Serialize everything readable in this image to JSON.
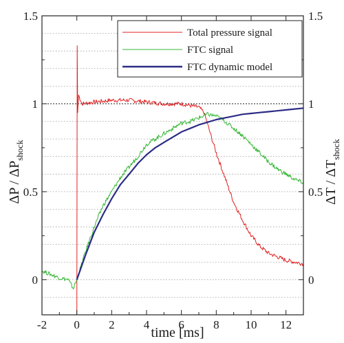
{
  "chart_data": {
    "type": "line",
    "title": "",
    "xlabel": "time [ms]",
    "ylabel_left": {
      "main": "ΔP / ΔP",
      "sub": "shock"
    },
    "ylabel_right": {
      "main": "ΔT / ΔT",
      "sub": "shock"
    },
    "xlim": [
      -2,
      13
    ],
    "ylim": [
      -0.2,
      1.5
    ],
    "x_ticks": [
      "-2",
      "0",
      "2",
      "4",
      "6",
      "8",
      "10",
      "12"
    ],
    "y_ticks_left": [
      "0",
      "0.5",
      "1",
      "1.5"
    ],
    "y_ticks_right": [
      "0",
      "0.5",
      "1",
      "1.5"
    ],
    "grid": "horizontal dotted",
    "reference_line": 1,
    "legend_position": "top-right",
    "series": [
      {
        "name": "Total pressure signal",
        "color": "#e02020",
        "x": [
          0,
          0.02,
          0.05,
          0.1,
          0.3,
          1,
          2,
          3,
          4,
          5,
          6,
          6.5,
          7,
          7.3,
          7.6,
          8,
          8.5,
          9,
          9.5,
          10,
          10.5,
          11,
          11.5,
          12,
          12.5,
          13
        ],
        "y": [
          -0.2,
          1.33,
          0.95,
          1.05,
          1.0,
          1.01,
          1.02,
          1.02,
          1.01,
          1.0,
          1.0,
          0.99,
          0.98,
          0.95,
          0.85,
          0.72,
          0.58,
          0.44,
          0.34,
          0.25,
          0.19,
          0.15,
          0.13,
          0.11,
          0.1,
          0.09
        ]
      },
      {
        "name": "FTC signal",
        "color": "#33b533",
        "x": [
          -2,
          -1.5,
          -1,
          -0.5,
          -0.2,
          0,
          0.5,
          1,
          1.5,
          2,
          2.5,
          3,
          3.5,
          4,
          4.5,
          5,
          5.5,
          6,
          6.5,
          7,
          7.5,
          8,
          8.5,
          9,
          9.5,
          10,
          10.5,
          11,
          11.5,
          12,
          12.5,
          13
        ],
        "y": [
          0.05,
          0.03,
          0.01,
          0.0,
          -0.05,
          0.0,
          0.16,
          0.3,
          0.42,
          0.5,
          0.58,
          0.64,
          0.7,
          0.77,
          0.8,
          0.83,
          0.86,
          0.89,
          0.9,
          0.92,
          0.94,
          0.93,
          0.9,
          0.86,
          0.82,
          0.77,
          0.72,
          0.67,
          0.63,
          0.6,
          0.57,
          0.55
        ]
      },
      {
        "name": "FTC dynamic model",
        "color": "#2b2b85",
        "x": [
          0,
          0.5,
          1,
          1.5,
          2,
          2.5,
          3,
          3.5,
          4,
          4.5,
          5,
          5.5,
          6,
          6.5,
          7,
          7.5,
          8,
          8.5,
          9,
          9.5,
          10,
          10.5,
          11,
          11.5,
          12,
          12.5,
          13
        ],
        "y": [
          0.0,
          0.14,
          0.27,
          0.37,
          0.46,
          0.54,
          0.6,
          0.66,
          0.71,
          0.75,
          0.78,
          0.81,
          0.84,
          0.86,
          0.88,
          0.895,
          0.91,
          0.92,
          0.93,
          0.94,
          0.945,
          0.95,
          0.955,
          0.96,
          0.965,
          0.97,
          0.975
        ]
      }
    ]
  }
}
